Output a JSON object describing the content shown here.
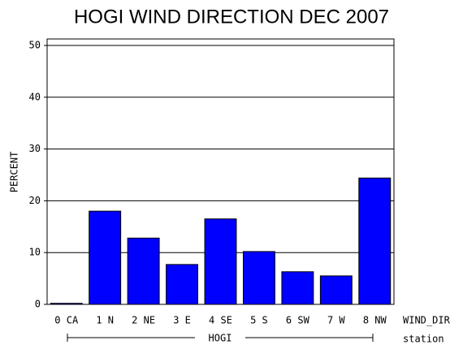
{
  "chart_data": {
    "type": "bar",
    "title": "HOGI WIND DIRECTION DEC 2007",
    "y_label": "PERCENT",
    "x_label": "WIND_DIR",
    "group_label": "HOGI",
    "group_axis_label": "station",
    "categories": [
      "0 CA",
      "1 N",
      "2 NE",
      "3 E",
      "4 SE",
      "5 S",
      "6 SW",
      "7 W",
      "8 NW"
    ],
    "values": [
      0.2,
      18.0,
      12.8,
      7.7,
      16.5,
      10.2,
      6.3,
      5.5,
      24.4
    ],
    "color": "#0000ff",
    "ylim": [
      0,
      51.25
    ],
    "yticks": [
      0,
      10,
      20,
      30,
      40,
      50
    ],
    "grid": true
  }
}
